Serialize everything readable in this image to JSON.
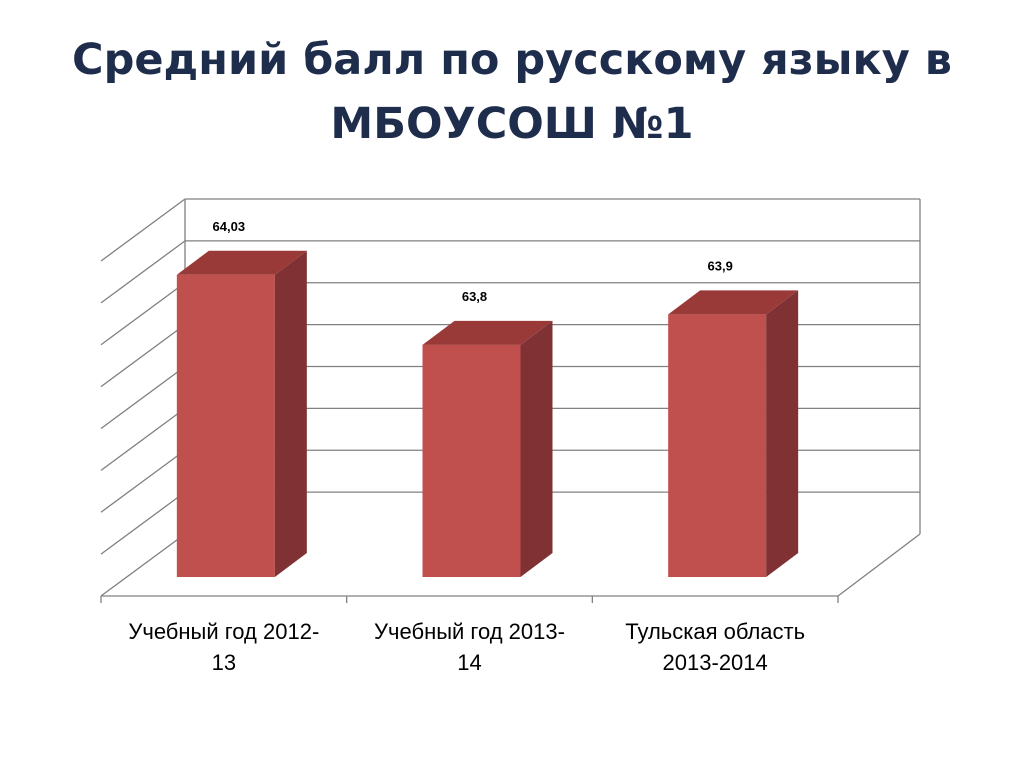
{
  "slide": {
    "title": "Средний балл по русскому языку в\nМБОУСОШ №1"
  },
  "chart_data": {
    "type": "bar",
    "three_d": true,
    "categories": [
      [
        "Учебный год 2012-",
        "13"
      ],
      [
        "Учебный год 2013-",
        "14"
      ],
      [
        "Тульская область",
        "2013-2014"
      ]
    ],
    "values": [
      64.03,
      63.8,
      63.9
    ],
    "data_labels": [
      "64,03",
      "63,8",
      "63,9"
    ],
    "ylim": [
      63.1,
      64.2
    ],
    "grid": true,
    "legend": "none",
    "colors": {
      "bar_front": "#c0504d",
      "bar_side": "#7f3133",
      "bar_top": "#9a3a38",
      "gridline": "#808080"
    }
  }
}
